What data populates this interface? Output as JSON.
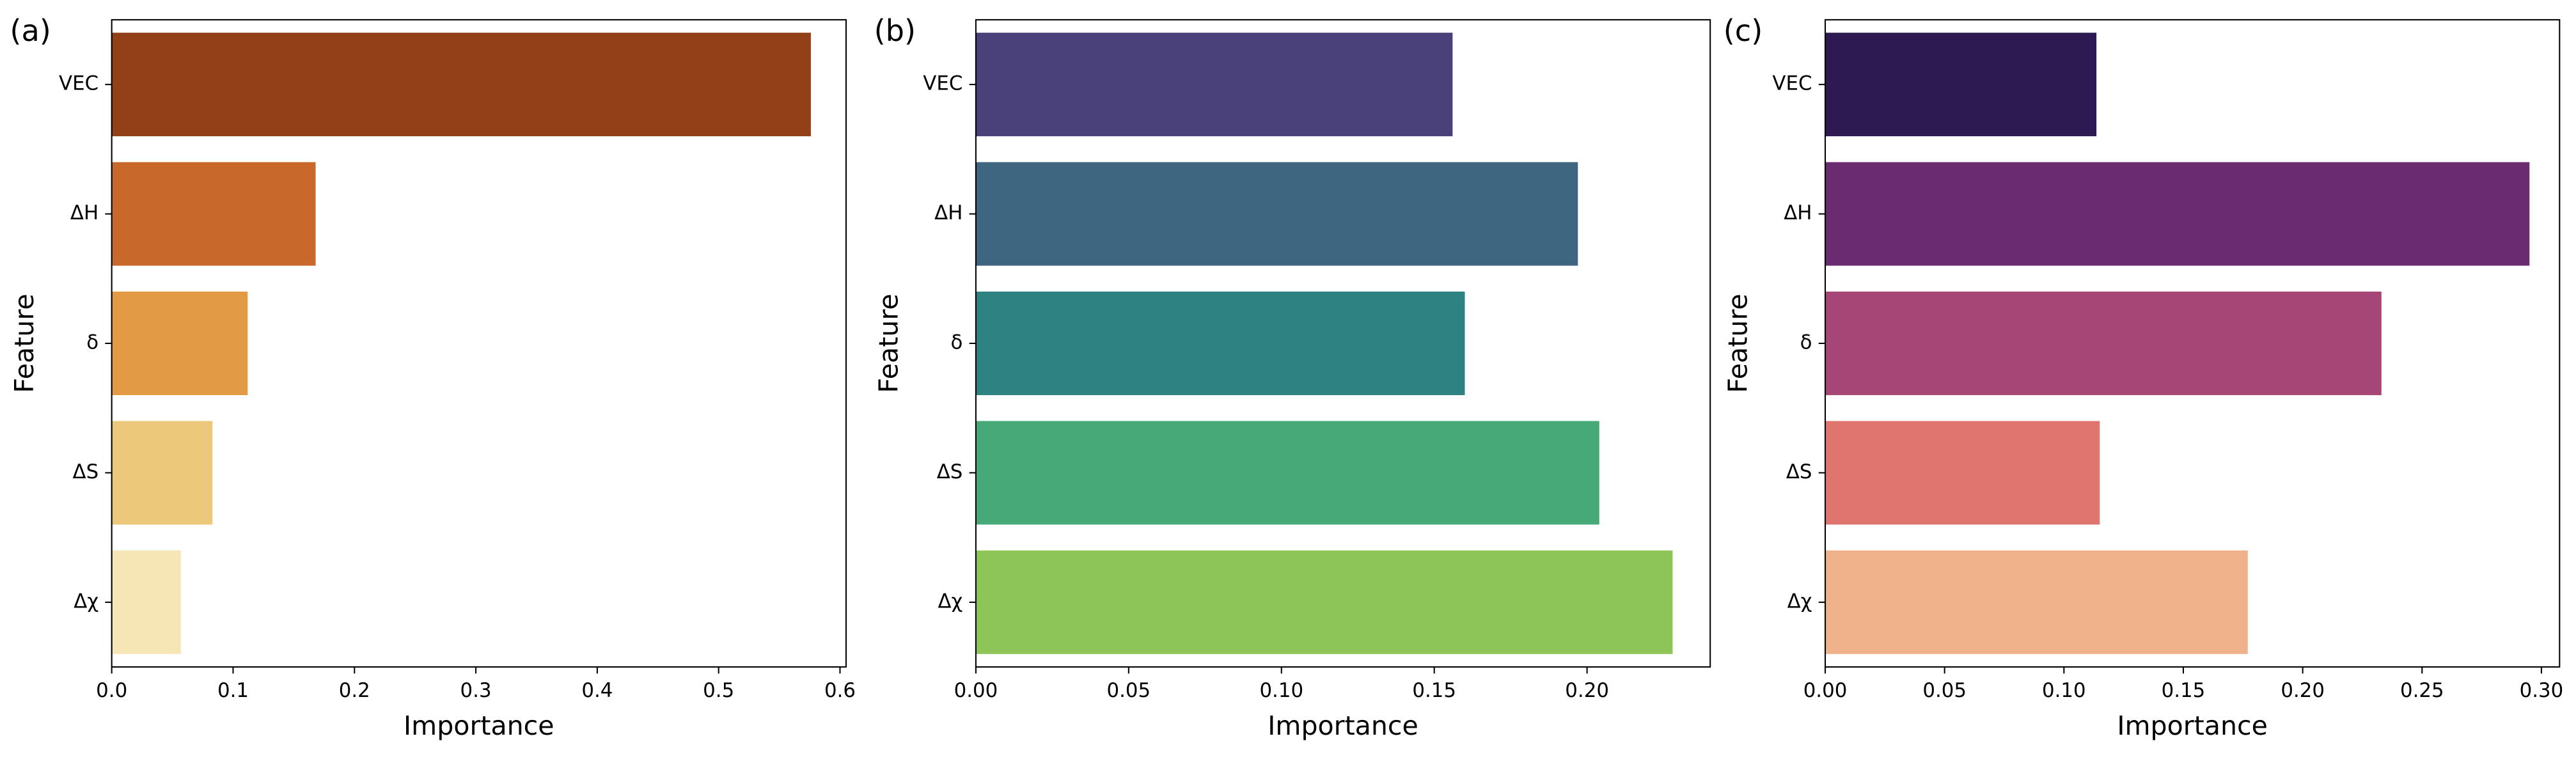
{
  "chart_data": [
    {
      "type": "barh",
      "panel_label": "(a)",
      "xlabel": "Importance",
      "ylabel": "Feature",
      "categories": [
        "VEC",
        "ΔH",
        "δ",
        "ΔS",
        "Δχ"
      ],
      "values": [
        0.576,
        0.168,
        0.112,
        0.083,
        0.057
      ],
      "colors": [
        "#933f18",
        "#c8682a",
        "#e39a45",
        "#ecc97a",
        "#f6e6b6"
      ],
      "xlim": [
        0,
        0.605
      ],
      "xticks": [
        {
          "value": 0,
          "label": "0.0"
        },
        {
          "value": 0.1,
          "label": "0.1"
        },
        {
          "value": 0.2,
          "label": "0.2"
        },
        {
          "value": 0.3,
          "label": "0.3"
        },
        {
          "value": 0.4,
          "label": "0.4"
        },
        {
          "value": 0.5,
          "label": "0.5"
        },
        {
          "value": 0.6,
          "label": "0.6"
        }
      ]
    },
    {
      "type": "barh",
      "panel_label": "(b)",
      "xlabel": "Importance",
      "ylabel": "Feature",
      "categories": [
        "VEC",
        "ΔH",
        "δ",
        "ΔS",
        "Δχ"
      ],
      "values": [
        0.156,
        0.197,
        0.16,
        0.204,
        0.228
      ],
      "colors": [
        "#4a417a",
        "#3e6680",
        "#2e8380",
        "#47a878",
        "#8dc558"
      ],
      "xlim": [
        0,
        0.2403
      ],
      "xticks": [
        {
          "value": 0,
          "label": "0.00"
        },
        {
          "value": 0.05,
          "label": "0.05"
        },
        {
          "value": 0.1,
          "label": "0.10"
        },
        {
          "value": 0.15,
          "label": "0.15"
        },
        {
          "value": 0.2,
          "label": "0.20"
        }
      ]
    },
    {
      "type": "barh",
      "panel_label": "(c)",
      "xlabel": "Importance",
      "ylabel": "Feature",
      "categories": [
        "VEC",
        "ΔH",
        "δ",
        "ΔS",
        "Δχ"
      ],
      "values": [
        0.1136,
        0.295,
        0.233,
        0.115,
        0.177
      ],
      "colors": [
        "#2e1a52",
        "#6a2b70",
        "#a64677",
        "#e07570",
        "#efb28b"
      ],
      "xlim": [
        0,
        0.3076
      ],
      "xticks": [
        {
          "value": 0,
          "label": "0.00"
        },
        {
          "value": 0.05,
          "label": "0.05"
        },
        {
          "value": 0.1,
          "label": "0.10"
        },
        {
          "value": 0.15,
          "label": "0.15"
        },
        {
          "value": 0.2,
          "label": "0.20"
        },
        {
          "value": 0.25,
          "label": "0.25"
        },
        {
          "value": 0.3,
          "label": "0.30"
        }
      ]
    }
  ]
}
